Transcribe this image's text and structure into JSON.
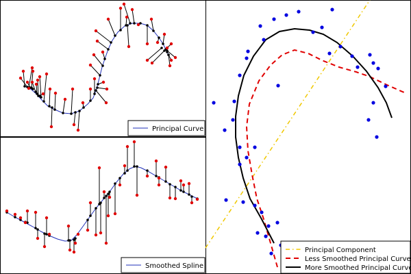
{
  "chart_data": [
    {
      "panel": "top-left",
      "type": "scatter",
      "xlim": [
        0,
        300
      ],
      "ylim": [
        0,
        200
      ],
      "legend": [
        {
          "label": "Principal Curve",
          "color": "#1f2fb8"
        }
      ],
      "legend_position": "bottom-right",
      "curve_color": "#1f2fb8",
      "point_color": "#e00000",
      "proj_color": "#000000",
      "curve": [
        [
          36,
          126
        ],
        [
          45,
          130
        ],
        [
          54,
          138
        ],
        [
          62,
          147
        ],
        [
          70,
          155
        ],
        [
          80,
          160
        ],
        [
          92,
          165
        ],
        [
          104,
          166
        ],
        [
          116,
          162
        ],
        [
          128,
          152
        ],
        [
          136,
          143
        ],
        [
          140,
          132
        ],
        [
          143,
          122
        ],
        [
          146,
          110
        ],
        [
          149,
          98
        ],
        [
          153,
          86
        ],
        [
          158,
          72
        ],
        [
          164,
          59
        ],
        [
          172,
          47
        ],
        [
          182,
          38
        ],
        [
          193,
          34
        ],
        [
          205,
          34
        ],
        [
          215,
          37
        ],
        [
          224,
          45
        ],
        [
          232,
          55
        ],
        [
          238,
          64
        ],
        [
          242,
          72
        ],
        [
          246,
          80
        ]
      ],
      "points": [
        [
          34,
          104,
          36,
          126
        ],
        [
          48,
          104,
          46,
          128
        ],
        [
          47,
          120,
          52,
          134
        ],
        [
          53,
          123,
          54,
          137
        ],
        [
          42,
          129,
          48,
          130
        ],
        [
          58,
          112,
          60,
          142
        ],
        [
          73,
          130,
          72,
          155
        ],
        [
          81,
          136,
          80,
          160
        ],
        [
          95,
          145,
          92,
          165
        ],
        [
          106,
          130,
          104,
          166
        ],
        [
          114,
          190,
          116,
          162
        ],
        [
          121,
          150,
          122,
          157
        ],
        [
          75,
          185,
          76,
          157
        ],
        [
          108,
          182,
          110,
          164
        ],
        [
          132,
          130,
          132,
          147
        ],
        [
          138,
          115,
          138,
          137
        ],
        [
          151,
          120,
          143,
          123
        ],
        [
          155,
          150,
          140,
          132
        ],
        [
          156,
          130,
          142,
          128
        ],
        [
          132,
          95,
          146,
          110
        ],
        [
          137,
          80,
          150,
          96
        ],
        [
          150,
          76,
          153,
          86
        ],
        [
          142,
          60,
          158,
          72
        ],
        [
          140,
          45,
          162,
          62
        ],
        [
          158,
          28,
          168,
          52
        ],
        [
          176,
          12,
          176,
          44
        ],
        [
          185,
          25,
          184,
          37
        ],
        [
          181,
          6,
          190,
          34
        ],
        [
          188,
          68,
          186,
          37
        ],
        [
          193,
          14,
          196,
          34
        ],
        [
          202,
          36,
          205,
          34
        ],
        [
          215,
          64,
          215,
          37
        ],
        [
          221,
          28,
          224,
          45
        ],
        [
          230,
          62,
          232,
          55
        ],
        [
          240,
          50,
          238,
          64
        ],
        [
          250,
          64,
          242,
          72
        ],
        [
          244,
          70,
          244,
          76
        ],
        [
          250,
          88,
          246,
          80
        ],
        [
          215,
          88,
          236,
          70
        ],
        [
          222,
          92,
          240,
          74
        ],
        [
          248,
          96,
          246,
          80
        ],
        [
          256,
          84,
          244,
          74
        ],
        [
          47,
          99,
          42,
          128
        ],
        [
          30,
          114,
          40,
          127
        ],
        [
          63,
          137,
          58,
          140
        ],
        [
          68,
          108,
          64,
          148
        ],
        [
          55,
          117,
          56,
          140
        ],
        [
          40,
          120,
          44,
          128
        ]
      ]
    },
    {
      "panel": "bottom-left",
      "type": "scatter",
      "xlim": [
        0,
        300
      ],
      "ylim": [
        0,
        200
      ],
      "legend": [
        {
          "label": "Smoothed Spline",
          "color": "#1f2fb8"
        }
      ],
      "legend_position": "bottom-right",
      "curve_color": "#1f2fb8",
      "point_color": "#e00000",
      "proj_color": "#000000",
      "curve": [
        [
          10,
          110
        ],
        [
          22,
          117
        ],
        [
          35,
          124
        ],
        [
          48,
          131
        ],
        [
          60,
          138
        ],
        [
          72,
          144
        ],
        [
          84,
          149
        ],
        [
          95,
          152
        ],
        [
          104,
          151
        ],
        [
          112,
          143
        ],
        [
          120,
          132
        ],
        [
          130,
          118
        ],
        [
          140,
          104
        ],
        [
          150,
          92
        ],
        [
          160,
          80
        ],
        [
          170,
          66
        ],
        [
          180,
          54
        ],
        [
          190,
          46
        ],
        [
          198,
          43
        ],
        [
          206,
          45
        ],
        [
          216,
          50
        ],
        [
          228,
          57
        ],
        [
          240,
          64
        ],
        [
          252,
          71
        ],
        [
          264,
          78
        ],
        [
          276,
          84
        ],
        [
          288,
          90
        ]
      ],
      "points": [
        [
          10,
          108,
          10,
          110
        ],
        [
          22,
          113,
          22,
          117
        ],
        [
          30,
          118,
          30,
          121
        ],
        [
          37,
          125,
          37,
          124
        ],
        [
          40,
          108,
          40,
          125
        ],
        [
          52,
          110,
          52,
          133
        ],
        [
          55,
          148,
          55,
          135
        ],
        [
          65,
          160,
          65,
          141
        ],
        [
          68,
          118,
          68,
          142
        ],
        [
          72,
          142,
          72,
          144
        ],
        [
          100,
          130,
          100,
          151
        ],
        [
          102,
          165,
          102,
          151
        ],
        [
          108,
          168,
          108,
          150
        ],
        [
          110,
          155,
          110,
          148
        ],
        [
          114,
          142,
          114,
          142
        ],
        [
          128,
          136,
          128,
          121
        ],
        [
          132,
          96,
          132,
          115
        ],
        [
          140,
          143,
          140,
          104
        ],
        [
          147,
          140,
          147,
          96
        ],
        [
          152,
          80,
          152,
          89
        ],
        [
          155,
          155,
          155,
          86
        ],
        [
          158,
          115,
          158,
          83
        ],
        [
          160,
          88,
          160,
          80
        ],
        [
          145,
          45,
          145,
          98
        ],
        [
          168,
          112,
          168,
          68
        ],
        [
          175,
          70,
          175,
          60
        ],
        [
          182,
          42,
          182,
          53
        ],
        [
          186,
          14,
          186,
          49
        ],
        [
          196,
          7,
          196,
          43
        ],
        [
          200,
          85,
          200,
          43
        ],
        [
          215,
          57,
          215,
          49
        ],
        [
          228,
          35,
          228,
          57
        ],
        [
          232,
          70,
          232,
          59
        ],
        [
          242,
          44,
          242,
          65
        ],
        [
          248,
          89,
          248,
          69
        ],
        [
          256,
          90,
          256,
          73
        ],
        [
          264,
          64,
          264,
          78
        ],
        [
          268,
          70,
          268,
          80
        ],
        [
          276,
          68,
          276,
          84
        ],
        [
          280,
          96,
          280,
          87
        ],
        [
          288,
          91,
          288,
          90
        ],
        [
          232,
          60,
          232,
          59
        ]
      ]
    },
    {
      "panel": "right",
      "type": "scatter",
      "xlim": [
        0,
        300
      ],
      "ylim": [
        0,
        400
      ],
      "legend": [
        {
          "label": "Principal Component",
          "color": "#f0c800",
          "dash": "6,4,1.5,4"
        },
        {
          "label": "Less Smoothed Principal Curve",
          "color": "#e00000",
          "dash": "7,5"
        },
        {
          "label": "More Smoothed Principal Curve",
          "color": "#000000",
          "dash": ""
        }
      ],
      "legend_position": "bottom-right",
      "point_color": "#0000e0",
      "principal_component": [
        [
          0,
          362
        ],
        [
          240,
          0
        ]
      ],
      "less_smoothed": [
        [
          105,
          390
        ],
        [
          95,
          355
        ],
        [
          85,
          320
        ],
        [
          75,
          290
        ],
        [
          68,
          255
        ],
        [
          62,
          220
        ],
        [
          60,
          185
        ],
        [
          64,
          152
        ],
        [
          78,
          118
        ],
        [
          95,
          95
        ],
        [
          112,
          80
        ],
        [
          130,
          73
        ],
        [
          150,
          78
        ],
        [
          170,
          88
        ],
        [
          195,
          98
        ],
        [
          220,
          105
        ],
        [
          240,
          112
        ],
        [
          265,
          124
        ],
        [
          290,
          135
        ]
      ],
      "more_smoothed": [
        [
          100,
          355
        ],
        [
          82,
          320
        ],
        [
          65,
          290
        ],
        [
          55,
          260
        ],
        [
          48,
          230
        ],
        [
          44,
          200
        ],
        [
          44,
          170
        ],
        [
          48,
          140
        ],
        [
          56,
          110
        ],
        [
          70,
          82
        ],
        [
          88,
          58
        ],
        [
          108,
          46
        ],
        [
          130,
          42
        ],
        [
          152,
          44
        ],
        [
          172,
          50
        ],
        [
          192,
          62
        ],
        [
          215,
          82
        ],
        [
          235,
          104
        ],
        [
          252,
          128
        ],
        [
          264,
          150
        ],
        [
          272,
          172
        ]
      ],
      "points": [
        [
          80,
          38
        ],
        [
          100,
          28
        ],
        [
          118,
          22
        ],
        [
          136,
          17
        ],
        [
          157,
          47
        ],
        [
          185,
          14
        ],
        [
          197,
          68
        ],
        [
          181,
          78
        ],
        [
          214,
          82
        ],
        [
          222,
          98
        ],
        [
          240,
          80
        ],
        [
          245,
          92
        ],
        [
          252,
          100
        ],
        [
          263,
          126
        ],
        [
          245,
          150
        ],
        [
          238,
          175
        ],
        [
          250,
          200
        ],
        [
          60,
          85
        ],
        [
          50,
          110
        ],
        [
          42,
          148
        ],
        [
          40,
          175
        ],
        [
          12,
          150
        ],
        [
          28,
          190
        ],
        [
          50,
          215
        ],
        [
          60,
          230
        ],
        [
          72,
          215
        ],
        [
          50,
          240
        ],
        [
          30,
          292
        ],
        [
          55,
          295
        ],
        [
          72,
          300
        ],
        [
          82,
          310
        ],
        [
          92,
          330
        ],
        [
          105,
          325
        ],
        [
          76,
          340
        ],
        [
          88,
          345
        ],
        [
          110,
          358
        ],
        [
          96,
          370
        ],
        [
          115,
          372
        ],
        [
          62,
          75
        ],
        [
          106,
          125
        ],
        [
          85,
          58
        ],
        [
          170,
          40
        ]
      ]
    }
  ]
}
